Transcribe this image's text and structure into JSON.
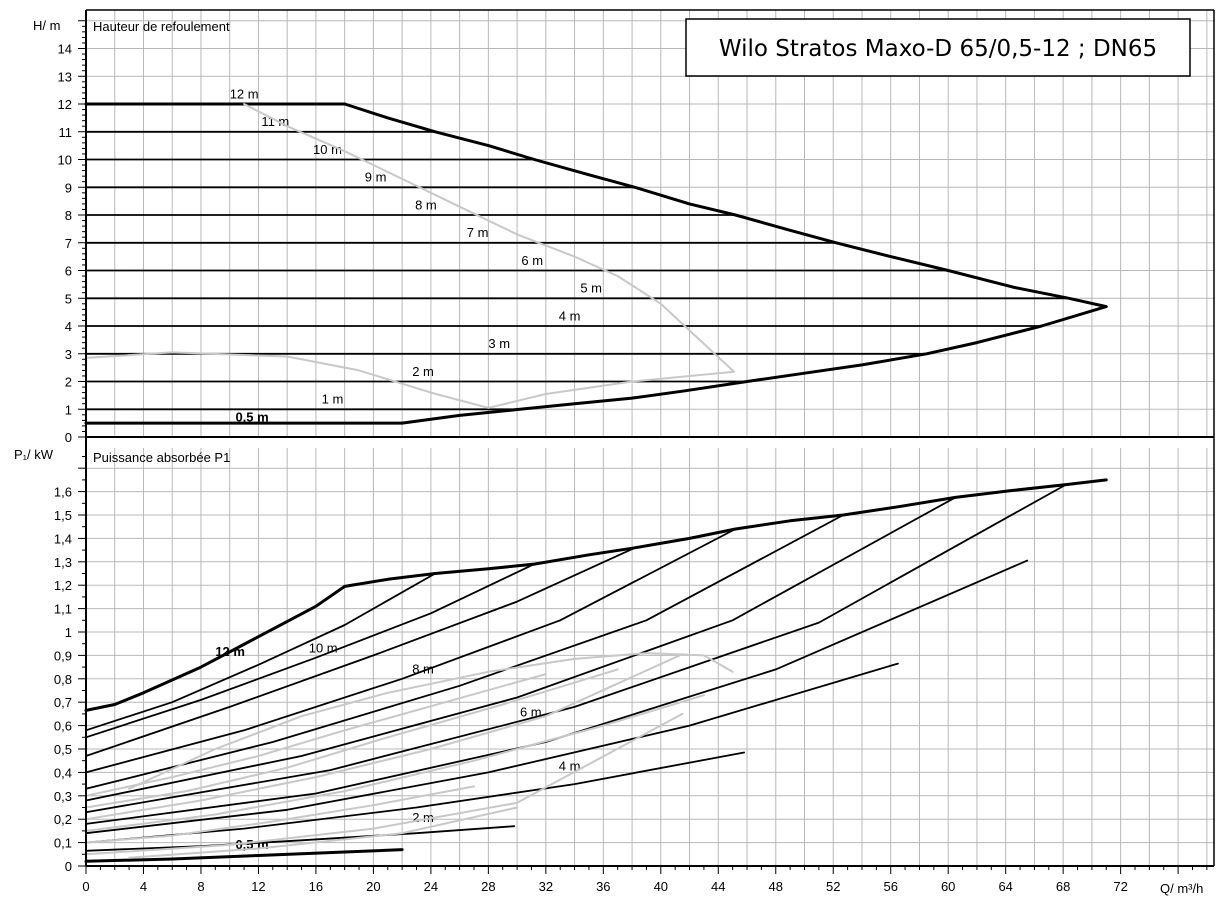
{
  "title_box": "Wilo Stratos Maxo-D 65/0,5-12 ; DN65",
  "colors": {
    "curve": "#000000",
    "efficiency_curve": "#c8c8c8",
    "grid": "#b8b8b8"
  },
  "chart_data": [
    {
      "type": "line",
      "title": "Hauteur de refoulement",
      "xlabel": "Q/ m³/h",
      "ylabel": "H/ m",
      "xlim": [
        0,
        78
      ],
      "ylim": [
        0,
        15
      ],
      "xticks": [
        "0",
        "4",
        "8",
        "12",
        "16",
        "20",
        "24",
        "28",
        "32",
        "36",
        "40",
        "44",
        "48",
        "52",
        "56",
        "60",
        "64",
        "68",
        "72"
      ],
      "yticks": [
        "0",
        "1",
        "2",
        "3",
        "4",
        "5",
        "6",
        "7",
        "8",
        "9",
        "10",
        "11",
        "12",
        "13",
        "14"
      ],
      "grid": true,
      "series": [
        {
          "name": "12 m",
          "label_at": [
            10,
            12.35
          ],
          "points": [
            [
              0,
              12
            ],
            [
              18,
              12
            ]
          ]
        },
        {
          "name": "11 m",
          "label_at": [
            12.2,
            11.35
          ],
          "points": [
            [
              0,
              11
            ],
            [
              24.3,
              11
            ]
          ]
        },
        {
          "name": "10 m",
          "label_at": [
            15.8,
            10.35
          ],
          "points": [
            [
              0,
              10
            ],
            [
              31.2,
              10
            ]
          ]
        },
        {
          "name": "9 m",
          "label_at": [
            19.4,
            9.35
          ],
          "points": [
            [
              0,
              9
            ],
            [
              38.2,
              9
            ]
          ]
        },
        {
          "name": "8 m",
          "label_at": [
            22.9,
            8.35
          ],
          "points": [
            [
              0,
              8
            ],
            [
              45.2,
              8
            ]
          ]
        },
        {
          "name": "7 m",
          "label_at": [
            26.5,
            7.35
          ],
          "points": [
            [
              0,
              7
            ],
            [
              52.2,
              7
            ]
          ]
        },
        {
          "name": "6 m",
          "label_at": [
            30.3,
            6.35
          ],
          "points": [
            [
              0,
              6
            ],
            [
              60,
              6
            ]
          ]
        },
        {
          "name": "5 m",
          "label_at": [
            34.4,
            5.35
          ],
          "points": [
            [
              0,
              5
            ],
            [
              68.4,
              5
            ]
          ]
        },
        {
          "name": "4 m",
          "label_at": [
            32.9,
            4.35
          ],
          "points": [
            [
              0,
              4
            ],
            [
              66.5,
              4
            ]
          ]
        },
        {
          "name": "3 m",
          "label_at": [
            28,
            3.35
          ],
          "points": [
            [
              0,
              3
            ],
            [
              58.5,
              3
            ]
          ]
        },
        {
          "name": "2 m",
          "label_at": [
            22.7,
            2.35
          ],
          "points": [
            [
              0,
              2
            ],
            [
              46,
              2
            ]
          ]
        },
        {
          "name": "1 m",
          "label_at": [
            16.4,
            1.35
          ],
          "points": [
            [
              0,
              1
            ],
            [
              30.2,
              1
            ]
          ]
        },
        {
          "name": "0,5 m",
          "label_at": [
            10.4,
            0.7
          ],
          "points": [
            [
              0,
              0.5
            ],
            [
              22,
              0.5
            ]
          ]
        },
        {
          "name": "",
          "role": "max-envelope",
          "points": [
            [
              18,
              12
            ],
            [
              21,
              11.5
            ],
            [
              24.3,
              11
            ],
            [
              28,
              10.5
            ],
            [
              31.2,
              10
            ],
            [
              35,
              9.45
            ],
            [
              38.2,
              9
            ],
            [
              42,
              8.4
            ],
            [
              45.2,
              8
            ],
            [
              49,
              7.45
            ],
            [
              52.2,
              7
            ],
            [
              56,
              6.5
            ],
            [
              60,
              6
            ],
            [
              64.5,
              5.4
            ],
            [
              68.4,
              5
            ],
            [
              71,
              4.7
            ],
            [
              66.5,
              4
            ],
            [
              62,
              3.4
            ],
            [
              58.5,
              3
            ],
            [
              54,
              2.6
            ],
            [
              50,
              2.3
            ],
            [
              46,
              2
            ],
            [
              41.5,
              1.65
            ],
            [
              38,
              1.4
            ],
            [
              34,
              1.2
            ],
            [
              30.2,
              1
            ],
            [
              26,
              0.78
            ],
            [
              22,
              0.5
            ]
          ]
        },
        {
          "name": "",
          "role": "efficiency",
          "points": [
            [
              11,
              12
            ],
            [
              14,
              11.2
            ],
            [
              18,
              10.3
            ],
            [
              22,
              9.3
            ],
            [
              26,
              8.3
            ],
            [
              30,
              7.3
            ],
            [
              34,
              6.5
            ],
            [
              37,
              5.8
            ],
            [
              40,
              4.8
            ],
            [
              42.5,
              3.6
            ],
            [
              45.1,
              2.35
            ],
            [
              38,
              2
            ],
            [
              32,
              1.55
            ],
            [
              28,
              1.05
            ],
            [
              24,
              1.6
            ],
            [
              19,
              2.4
            ],
            [
              14,
              2.9
            ],
            [
              6,
              3.05
            ],
            [
              0,
              2.85
            ]
          ]
        }
      ]
    },
    {
      "type": "line",
      "title": "Puissance absorbée P1",
      "xlabel": "Q/ m³/h",
      "ylabel": "P₁/ kW",
      "xlim": [
        0,
        78
      ],
      "ylim": [
        0,
        1.75
      ],
      "xticks": [
        "0",
        "4",
        "8",
        "12",
        "16",
        "20",
        "24",
        "28",
        "32",
        "36",
        "40",
        "44",
        "48",
        "52",
        "56",
        "60",
        "64",
        "68",
        "72"
      ],
      "yticks": [
        "0",
        "0,1",
        "0,2",
        "0,3",
        "0,4",
        "0,5",
        "0,6",
        "0,7",
        "0,8",
        "0,9",
        "1",
        "1,1",
        "1,2",
        "1,3",
        "1,4",
        "1,5",
        "1,6"
      ],
      "grid": true,
      "series": [
        {
          "name": "",
          "role": "max-envelope",
          "points": [
            [
              18,
              1.195
            ],
            [
              21,
              1.225
            ],
            [
              24.3,
              1.25
            ],
            [
              28,
              1.27
            ],
            [
              31.2,
              1.29
            ],
            [
              35,
              1.33
            ],
            [
              38.2,
              1.36
            ],
            [
              42,
              1.4
            ],
            [
              45.2,
              1.44
            ],
            [
              49,
              1.475
            ],
            [
              52.7,
              1.5
            ],
            [
              56.5,
              1.535
            ],
            [
              60.5,
              1.575
            ],
            [
              64.5,
              1.605
            ],
            [
              68.2,
              1.63
            ],
            [
              71,
              1.65
            ]
          ]
        },
        {
          "name": "12 m",
          "label_at": [
            9,
            0.915
          ],
          "points": [
            [
              0,
              0.665
            ],
            [
              2,
              0.69
            ],
            [
              4,
              0.74
            ],
            [
              8,
              0.85
            ],
            [
              12,
              0.98
            ],
            [
              16,
              1.11
            ],
            [
              18,
              1.195
            ]
          ]
        },
        {
          "name": "",
          "points": [
            [
              0,
              0.58
            ],
            [
              6,
              0.7
            ],
            [
              12,
              0.86
            ],
            [
              18,
              1.03
            ],
            [
              24.3,
              1.25
            ]
          ]
        },
        {
          "name": "10 m",
          "label_at": [
            15.5,
            0.93
          ],
          "points": [
            [
              0,
              0.55
            ],
            [
              8,
              0.71
            ],
            [
              16,
              0.89
            ],
            [
              24,
              1.08
            ],
            [
              31.2,
              1.29
            ]
          ]
        },
        {
          "name": "",
          "points": [
            [
              0,
              0.47
            ],
            [
              10,
              0.68
            ],
            [
              20,
              0.9
            ],
            [
              30,
              1.13
            ],
            [
              38.2,
              1.36
            ]
          ]
        },
        {
          "name": "8 m",
          "label_at": [
            22.7,
            0.84
          ],
          "points": [
            [
              0,
              0.4
            ],
            [
              11,
              0.58
            ],
            [
              22,
              0.8
            ],
            [
              33,
              1.05
            ],
            [
              45.2,
              1.44
            ]
          ]
        },
        {
          "name": "",
          "points": [
            [
              0,
              0.33
            ],
            [
              13,
              0.53
            ],
            [
              26,
              0.77
            ],
            [
              39,
              1.05
            ],
            [
              52.7,
              1.5
            ]
          ]
        },
        {
          "name": "6 m",
          "label_at": [
            30.2,
            0.655
          ],
          "points": [
            [
              0,
              0.28
            ],
            [
              15,
              0.47
            ],
            [
              30,
              0.72
            ],
            [
              45,
              1.05
            ],
            [
              60.5,
              1.575
            ]
          ]
        },
        {
          "name": "",
          "points": [
            [
              0,
              0.23
            ],
            [
              17,
              0.41
            ],
            [
              34,
              0.68
            ],
            [
              51,
              1.04
            ],
            [
              68.2,
              1.63
            ]
          ]
        },
        {
          "name": "",
          "points": [
            [
              0,
              0.18
            ],
            [
              16,
              0.31
            ],
            [
              32,
              0.53
            ],
            [
              48,
              0.84
            ],
            [
              65.5,
              1.305
            ]
          ]
        },
        {
          "name": "4 m",
          "label_at": [
            32.9,
            0.425
          ],
          "points": [
            [
              0,
              0.14
            ],
            [
              14,
              0.24
            ],
            [
              28,
              0.4
            ],
            [
              42,
              0.6
            ],
            [
              56.5,
              0.865
            ]
          ]
        },
        {
          "name": "",
          "points": [
            [
              0,
              0.1
            ],
            [
              11,
              0.16
            ],
            [
              23,
              0.25
            ],
            [
              34,
              0.35
            ],
            [
              45.8,
              0.485
            ]
          ]
        },
        {
          "name": "2 m",
          "label_at": [
            22.7,
            0.205
          ],
          "points": [
            [
              0,
              0.065
            ],
            [
              8,
              0.085
            ],
            [
              15,
              0.11
            ],
            [
              23,
              0.14
            ],
            [
              29.8,
              0.17
            ]
          ]
        },
        {
          "name": "0,5 m",
          "label_at": [
            10.4,
            0.09
          ],
          "points": [
            [
              0,
              0.02
            ],
            [
              6,
              0.03
            ],
            [
              12,
              0.045
            ],
            [
              18,
              0.06
            ],
            [
              22,
              0.07
            ]
          ]
        },
        {
          "name": "",
          "role": "efficiency",
          "points": [
            [
              3,
              0.33
            ],
            [
              9,
              0.5
            ],
            [
              15,
              0.64
            ],
            [
              21,
              0.74
            ],
            [
              28,
              0.83
            ],
            [
              34,
              0.885
            ],
            [
              39,
              0.91
            ],
            [
              43,
              0.9
            ],
            [
              45,
              0.83
            ]
          ]
        },
        {
          "name": "",
          "role": "efficiency",
          "points": [
            [
              0,
              0.1
            ],
            [
              6,
              0.13
            ],
            [
              13,
              0.19
            ],
            [
              20,
              0.26
            ],
            [
              27,
              0.34
            ]
          ]
        },
        {
          "name": "",
          "role": "efficiency",
          "points": [
            [
              0,
              0.15
            ],
            [
              9,
              0.22
            ],
            [
              18,
              0.32
            ],
            [
              27,
              0.45
            ],
            [
              36,
              0.6
            ],
            [
              43,
              0.73
            ]
          ]
        },
        {
          "name": "",
          "role": "efficiency",
          "points": [
            [
              0,
              0.2
            ],
            [
              8,
              0.28
            ],
            [
              16,
              0.38
            ],
            [
              24,
              0.5
            ],
            [
              32,
              0.64
            ],
            [
              41.5,
              0.905
            ]
          ]
        },
        {
          "name": "",
          "role": "efficiency",
          "points": [
            [
              0,
              0.25
            ],
            [
              7,
              0.32
            ],
            [
              14,
              0.42
            ],
            [
              21,
              0.55
            ],
            [
              29,
              0.69
            ],
            [
              37,
              0.84
            ]
          ]
        },
        {
          "name": "",
          "role": "efficiency",
          "points": [
            [
              0,
              0.3
            ],
            [
              6,
              0.38
            ],
            [
              12,
              0.47
            ],
            [
              18,
              0.58
            ],
            [
              25,
              0.7
            ],
            [
              32,
              0.82
            ]
          ]
        },
        {
          "name": "",
          "role": "efficiency",
          "points": [
            [
              0,
              0.05
            ],
            [
              10,
              0.09
            ],
            [
              20,
              0.16
            ],
            [
              30,
              0.27
            ],
            [
              41.5,
              0.65
            ]
          ]
        },
        {
          "name": "",
          "role": "efficiency",
          "points": [
            [
              3,
              0.035
            ],
            [
              12,
              0.075
            ],
            [
              22,
              0.14
            ],
            [
              30,
              0.25
            ]
          ]
        }
      ]
    }
  ]
}
